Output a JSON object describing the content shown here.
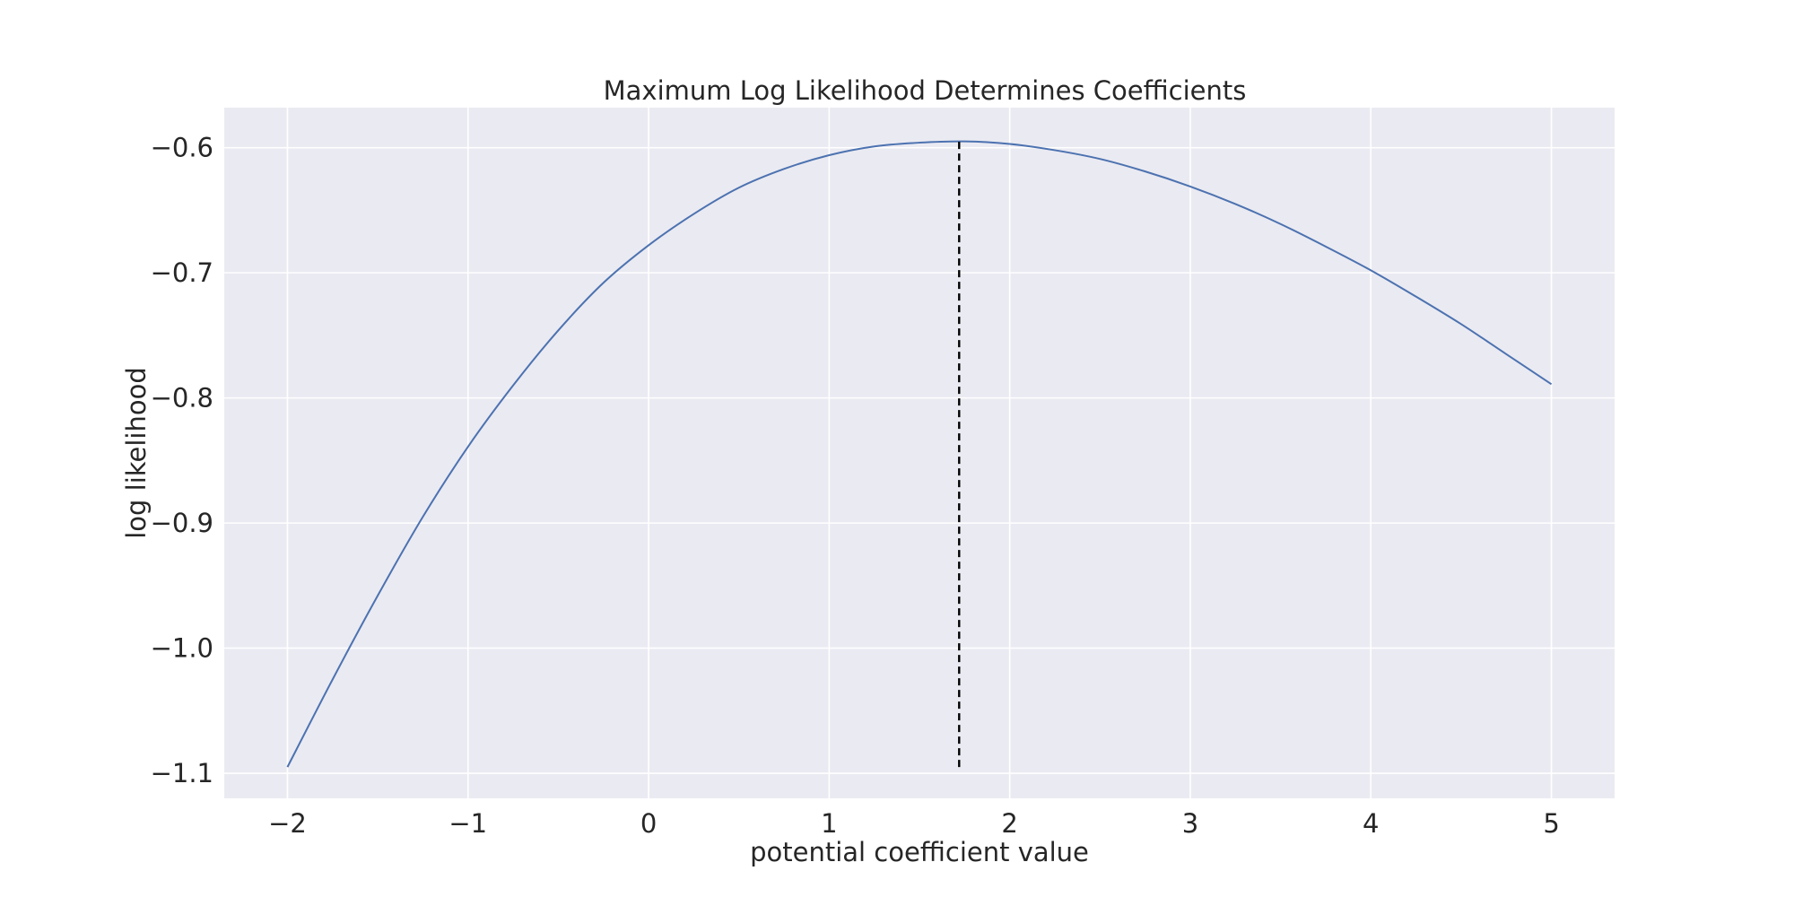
{
  "chart_data": {
    "type": "line",
    "title": "Maximum Log Likelihood Determines Coefficients",
    "xlabel": "potential coefficient value",
    "ylabel": "log likelihood",
    "xlim": [
      -2.35,
      5.35
    ],
    "ylim": [
      -1.12,
      -0.568
    ],
    "x_ticks": [
      -2,
      -1,
      0,
      1,
      2,
      3,
      4,
      5
    ],
    "x_tick_labels": [
      "−2",
      "−1",
      "0",
      "1",
      "2",
      "3",
      "4",
      "5"
    ],
    "y_ticks": [
      -1.1,
      -1.0,
      -0.9,
      -0.8,
      -0.7,
      -0.6
    ],
    "y_tick_labels": [
      "−1.1",
      "−1.0",
      "−0.9",
      "−0.8",
      "−0.7",
      "−0.6"
    ],
    "grid": true,
    "colors": {
      "plot_background": "#eaeaf2",
      "grid": "#ffffff",
      "line": "#4c72b0",
      "marker_line": "#000000"
    },
    "series": [
      {
        "x": [
          -2.0,
          -1.75,
          -1.5,
          -1.25,
          -1.0,
          -0.75,
          -0.5,
          -0.25,
          0.0,
          0.25,
          0.5,
          0.75,
          1.0,
          1.25,
          1.5,
          1.75,
          2.0,
          2.25,
          2.5,
          2.75,
          3.0,
          3.25,
          3.5,
          3.75,
          4.0,
          4.25,
          4.5,
          4.75,
          5.0
        ],
        "y": [
          -1.095,
          -1.025,
          -0.958,
          -0.895,
          -0.839,
          -0.79,
          -0.746,
          -0.708,
          -0.678,
          -0.653,
          -0.632,
          -0.617,
          -0.606,
          -0.599,
          -0.596,
          -0.595,
          -0.597,
          -0.602,
          -0.609,
          -0.619,
          -0.631,
          -0.645,
          -0.661,
          -0.679,
          -0.698,
          -0.719,
          -0.741,
          -0.765,
          -0.789
        ]
      }
    ],
    "vline": {
      "x": 1.72,
      "y_from": -1.095,
      "y_to": -0.594,
      "style": "dashed"
    }
  }
}
